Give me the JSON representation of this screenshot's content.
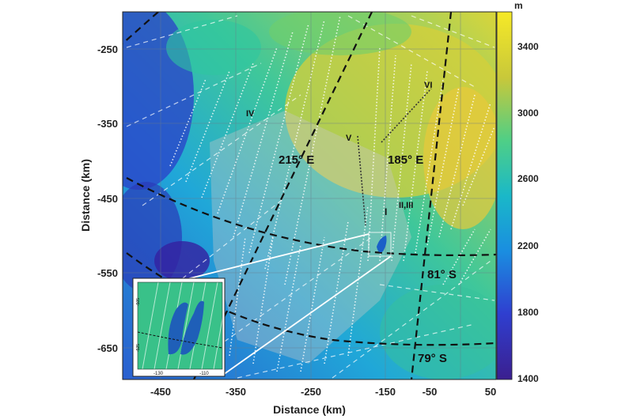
{
  "map": {
    "xlabel": "Distance (km)",
    "ylabel": "Distance (km)",
    "x_ticks": [
      "-450",
      "-350",
      "-250",
      "-150",
      "-50",
      "50"
    ],
    "y_ticks": [
      "-250",
      "-350",
      "-450",
      "-550",
      "-650"
    ],
    "labels": {
      "lon_215": "215° E",
      "lon_185": "185° E",
      "lat_81": "81° S",
      "lat_79": "79° S",
      "site_I": "I",
      "site_II_III": "II,III",
      "site_IV": "IV",
      "site_V": "V",
      "site_VI": "VI"
    },
    "colorbar": {
      "unit": "m",
      "ticks": [
        "3400",
        "3000",
        "2600",
        "2200",
        "1800",
        "1400"
      ],
      "colors": [
        "#3b1f8f",
        "#1f5fe0",
        "#1aa6d9",
        "#2fc7a0",
        "#8fd04a",
        "#e8c13a",
        "#f6e927"
      ]
    },
    "inset": {
      "x_ticks": [
        "-130",
        "-110"
      ],
      "y_ticks": [
        "-505",
        "-525"
      ]
    }
  }
}
